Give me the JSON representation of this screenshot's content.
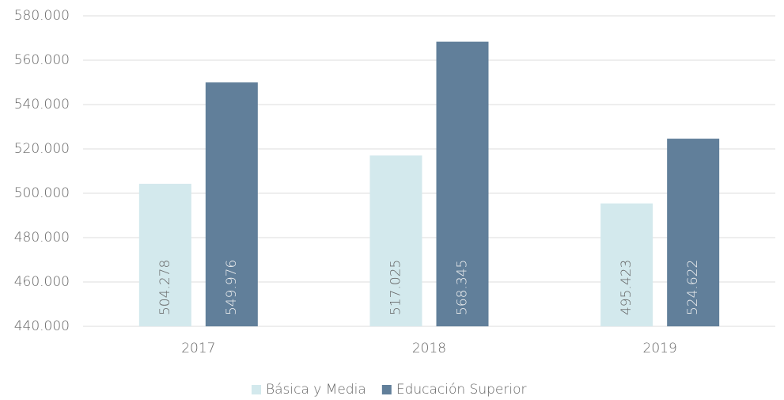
{
  "chart_data": {
    "type": "bar",
    "categories": [
      "2017",
      "2018",
      "2019"
    ],
    "series": [
      {
        "name": "Básica y Media",
        "color": "#d3e9ed",
        "values": [
          504278,
          517025,
          495423
        ],
        "value_labels": [
          "504.278",
          "517.025",
          "495.423"
        ]
      },
      {
        "name": "Educación Superior",
        "color": "#617f9a",
        "values": [
          549976,
          568345,
          524622
        ],
        "value_labels": [
          "549.976",
          "568.345",
          "524.622"
        ]
      }
    ],
    "ylim": [
      440000,
      580000
    ],
    "yticks": [
      {
        "value": 440000,
        "label": "440.000"
      },
      {
        "value": 460000,
        "label": "460.000"
      },
      {
        "value": 480000,
        "label": "480.000"
      },
      {
        "value": 500000,
        "label": "500.000"
      },
      {
        "value": 520000,
        "label": "520.000"
      },
      {
        "value": 540000,
        "label": "540.000"
      },
      {
        "value": 560000,
        "label": "560.000"
      },
      {
        "value": 580000,
        "label": "580.000"
      }
    ],
    "grid": true,
    "legend": "bottom"
  }
}
